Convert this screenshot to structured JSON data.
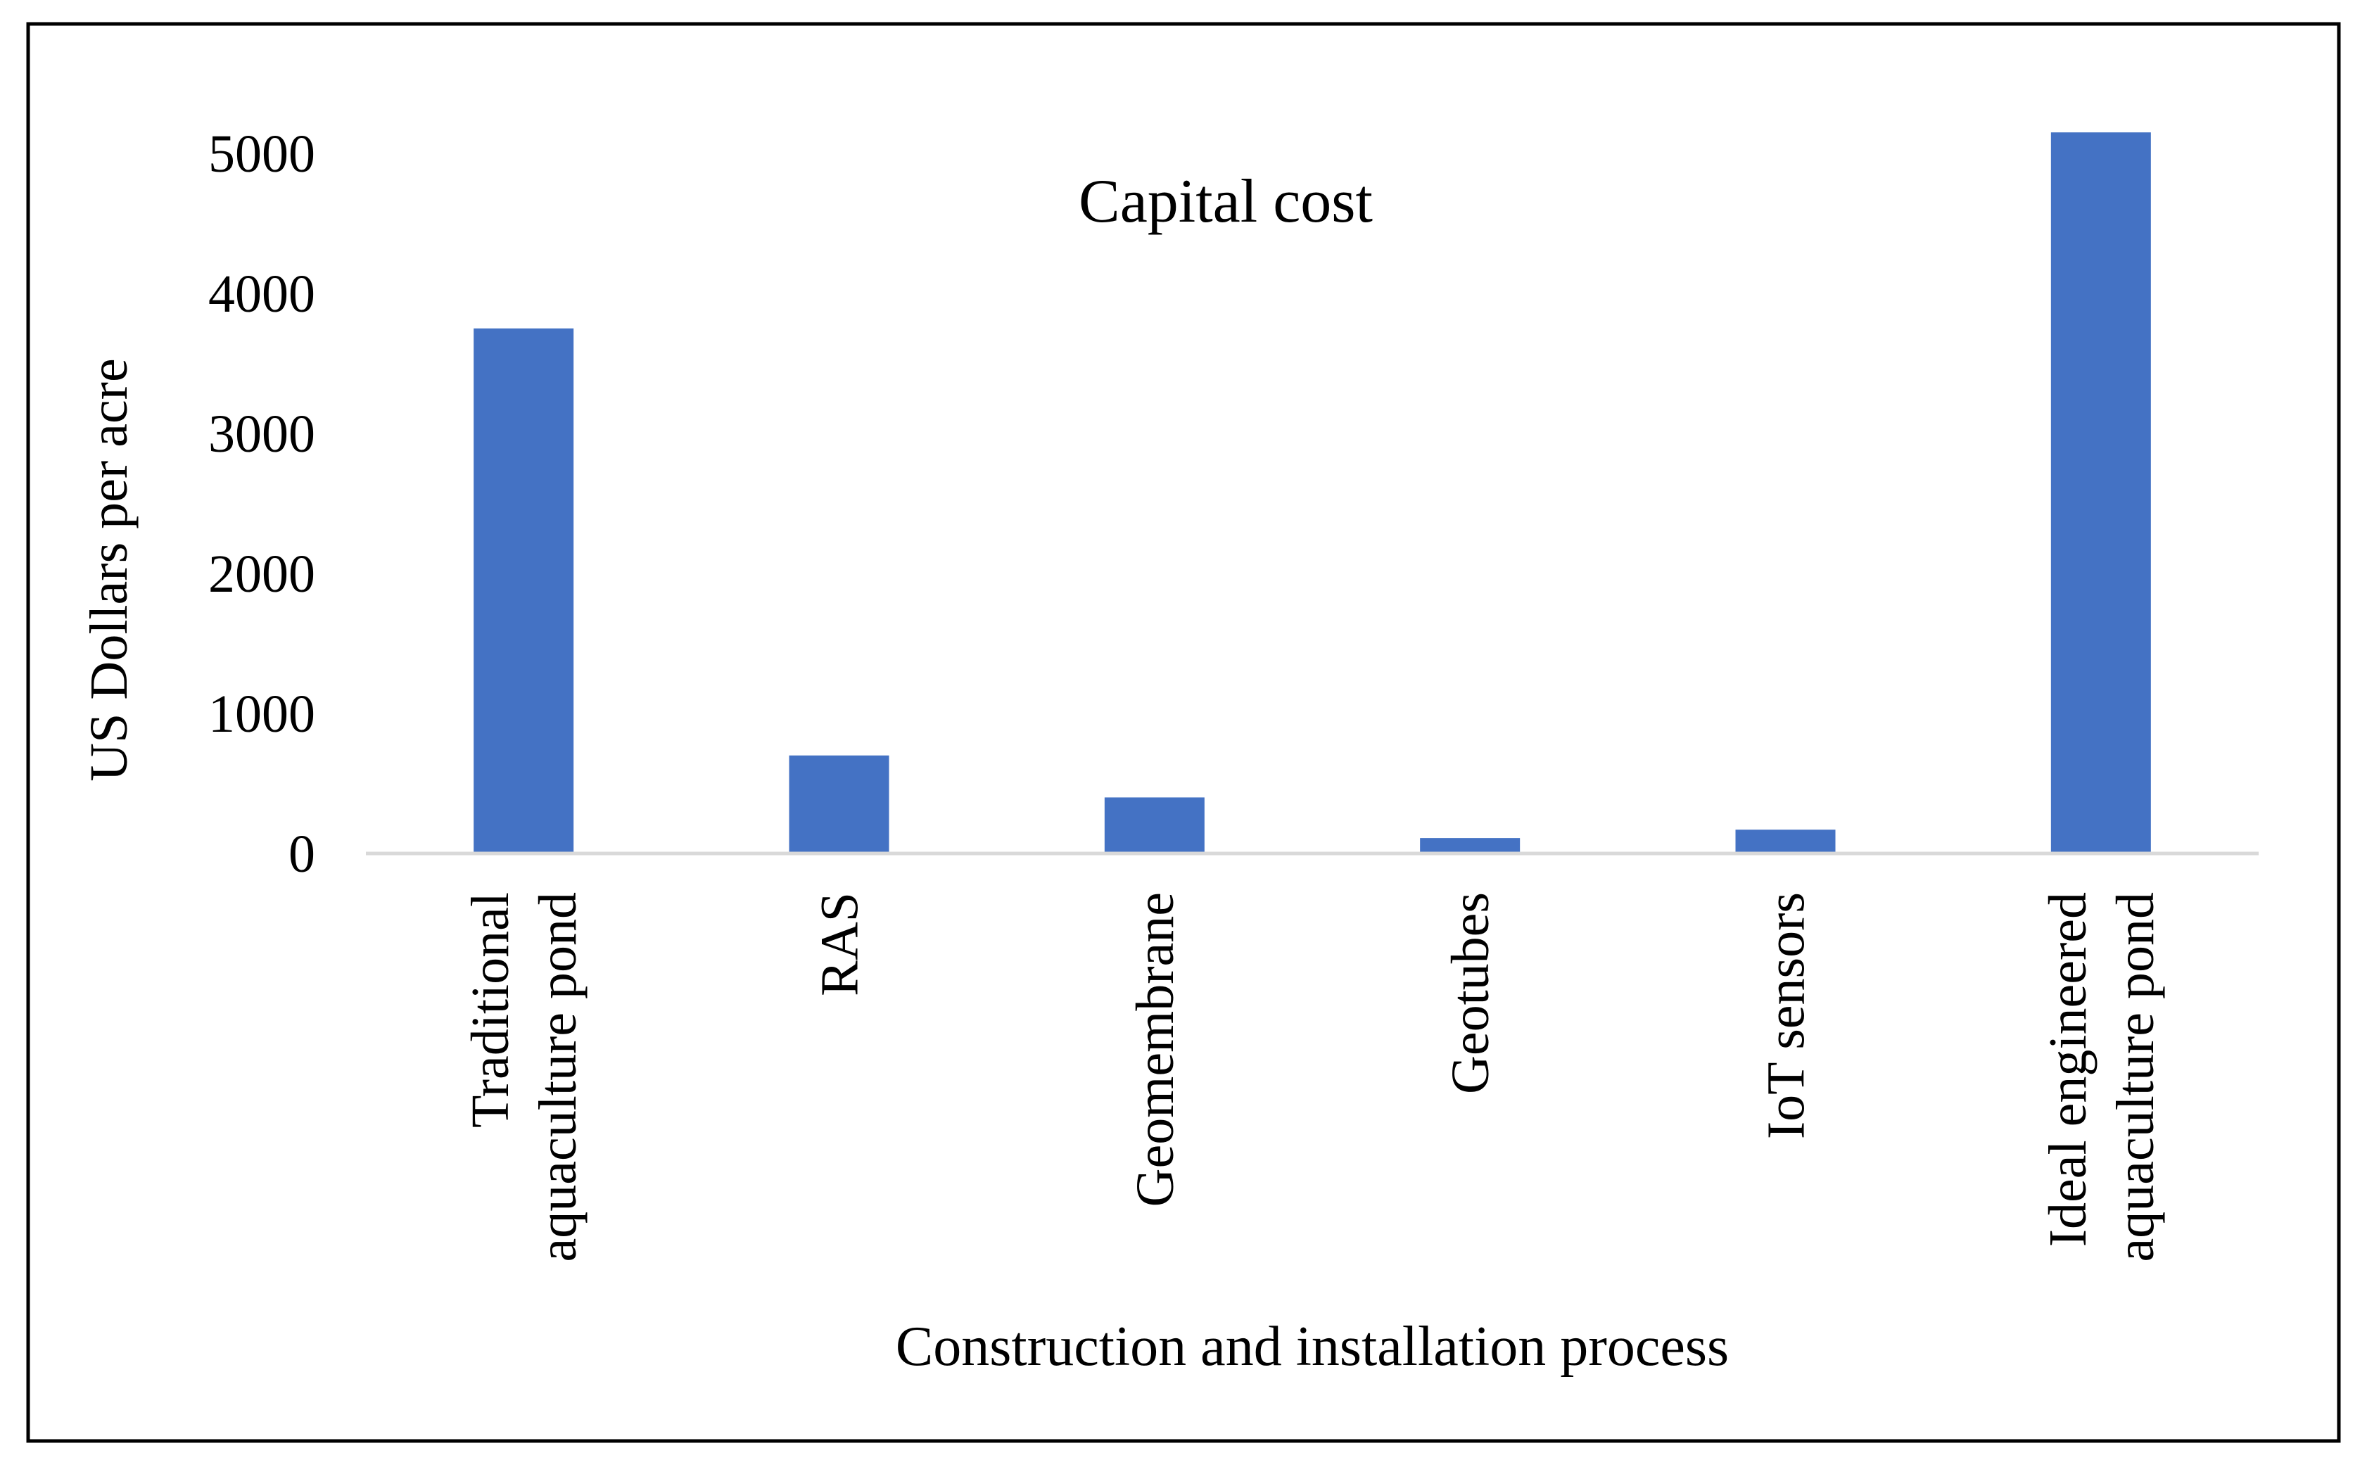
{
  "colors": {
    "bar": "#4472C4",
    "axis": "#d9d9d9",
    "text": "#000000",
    "frame": "#000000",
    "background": "#ffffff"
  },
  "chart_data": {
    "type": "bar",
    "title": "Capital cost",
    "xlabel": "Construction and installation process",
    "ylabel": "US Dollars per acre",
    "ylim": [
      0,
      5000
    ],
    "yticks": [
      0,
      1000,
      2000,
      3000,
      4000,
      5000
    ],
    "grid": false,
    "legend": "none",
    "categories": [
      [
        "Traditional",
        "aquaculture pond"
      ],
      [
        "RAS"
      ],
      [
        "Geomembrane"
      ],
      [
        "Geotubes"
      ],
      [
        "IoT sensors"
      ],
      [
        "Ideal engineered",
        "aquaculture pond"
      ]
    ],
    "values": [
      3750,
      700,
      400,
      110,
      170,
      5150
    ]
  }
}
